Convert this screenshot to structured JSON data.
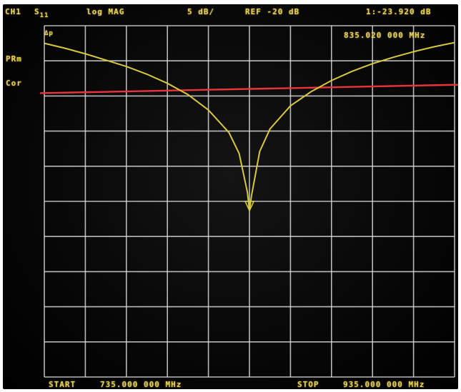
{
  "header": {
    "channel": "CH1",
    "parameter": "S11",
    "format": "log MAG",
    "scale": "5 dB/",
    "reference": "REF -20 dB",
    "marker_readout": "1:-23.920 dB"
  },
  "marker_frequency": "835.020 000 MHz",
  "grid_label": "Δp",
  "side_labels": {
    "pre": "PRm",
    "cor": "Cor"
  },
  "footer": {
    "start_label": "START",
    "start_value": "735.000 000 MHz",
    "stop_label": "STOP",
    "stop_value": "935.000 000 MHz"
  },
  "colors": {
    "trace": "#d8c83c",
    "reference_line": "#e8343a",
    "grid": "#d8d8d8",
    "annotation": "#e8d25a"
  },
  "chart_data": {
    "type": "line",
    "x_range_mhz": [
      735,
      935
    ],
    "scale_db_per_div": 5,
    "reference_db": -20,
    "marker": {
      "id": "1",
      "frequency_mhz": 835.02,
      "value_db": -23.92
    },
    "series": [
      {
        "x": [
          735,
          745,
          755,
          765,
          775,
          785,
          795,
          805,
          815,
          825,
          830,
          834,
          835,
          836,
          840,
          845,
          855,
          865,
          875,
          885,
          895,
          905,
          915,
          925,
          935
        ],
        "y": [
          -0.1,
          -0.8,
          -1.6,
          -2.5,
          -3.4,
          -4.5,
          -5.8,
          -7.4,
          -9.6,
          -12.8,
          -15.8,
          -21.3,
          -23.9,
          -21.8,
          -15.5,
          -12.3,
          -9.0,
          -7.0,
          -5.4,
          -4.1,
          -3.0,
          -2.1,
          -1.3,
          -0.6,
          0.0
        ]
      }
    ],
    "reference_line": {
      "y_start": -7.2,
      "y_end": -6.0
    }
  }
}
